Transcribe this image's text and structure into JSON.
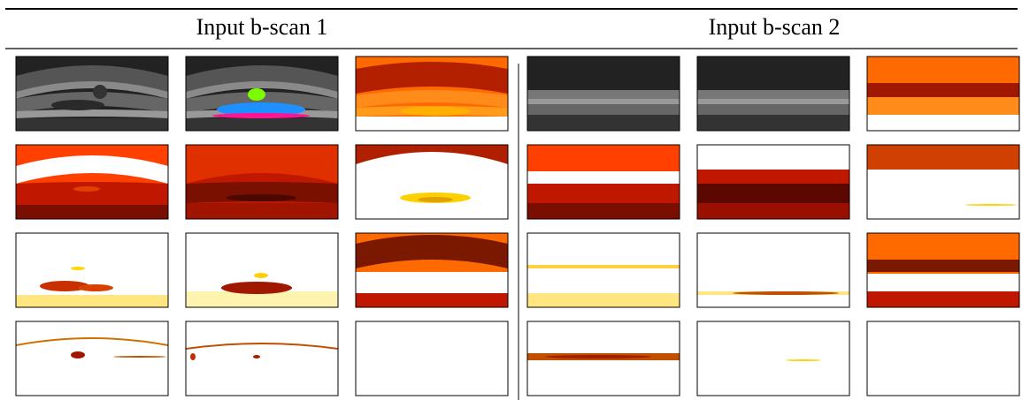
{
  "header": {
    "left": "Input b-scan 1",
    "right": "Input b-scan 2"
  }
}
